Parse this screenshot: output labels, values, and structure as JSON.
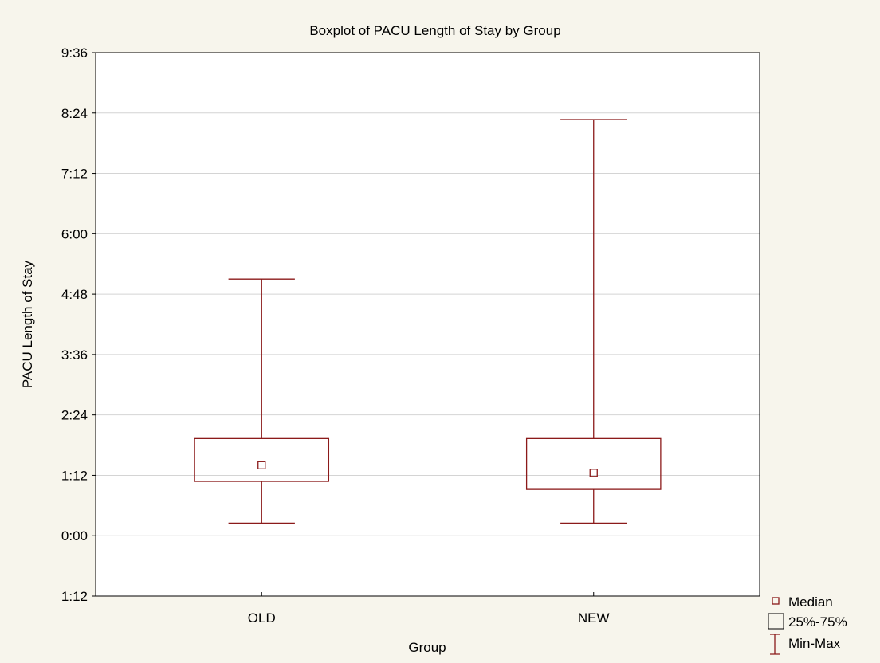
{
  "chart_data": {
    "type": "box",
    "title": "Boxplot of PACU Length of Stay by Group",
    "xlabel": "Group",
    "ylabel": "PACU Length of Stay",
    "ylim": [
      -1.2,
      9.6
    ],
    "ytick_values": [
      -1.2,
      0,
      1.2,
      2.4,
      3.6,
      4.8,
      6.0,
      7.2,
      8.4,
      9.6
    ],
    "ytick_labels": [
      "1:12",
      "0:00",
      "1:12",
      "2:24",
      "3:36",
      "4:48",
      "6:00",
      "7:12",
      "8:24",
      "9:36"
    ],
    "categories": [
      "OLD",
      "NEW"
    ],
    "boxes": [
      {
        "name": "OLD",
        "min": 0.25,
        "q1": 1.08,
        "median": 1.4,
        "q3": 1.93,
        "max": 5.1
      },
      {
        "name": "NEW",
        "min": 0.25,
        "q1": 0.92,
        "median": 1.25,
        "q3": 1.93,
        "max": 8.27
      }
    ],
    "grid": true,
    "legend": {
      "placement": "bottom-right",
      "entries": [
        "Median",
        "25%-75%",
        "Min-Max"
      ]
    },
    "colors": {
      "series": "#8b1a1a",
      "background": "#f7f5ec",
      "plot_area": "#ffffff",
      "grid": "#d4d4d4"
    }
  }
}
